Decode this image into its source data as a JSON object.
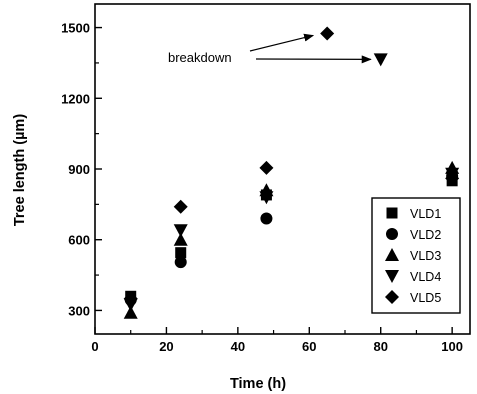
{
  "chart_data": {
    "type": "scatter",
    "title": "",
    "xlabel": "Time (h)",
    "ylabel": "Tree length (µm)",
    "xlim": [
      0,
      105
    ],
    "ylim": [
      200,
      1600
    ],
    "x_ticks": [
      0,
      20,
      40,
      60,
      80,
      100
    ],
    "y_ticks": [
      300,
      600,
      900,
      1200,
      1500
    ],
    "grid": false,
    "legend_position": "bottom-right",
    "series": [
      {
        "name": "VLD1",
        "marker": "square",
        "x": [
          10,
          24,
          48,
          100
        ],
        "y": [
          360,
          545,
          790,
          850
        ]
      },
      {
        "name": "VLD2",
        "marker": "circle",
        "x": [
          10,
          24,
          48,
          100
        ],
        "y": [
          345,
          505,
          690,
          870
        ]
      },
      {
        "name": "VLD3",
        "marker": "triangle-up",
        "x": [
          10,
          24,
          48,
          100
        ],
        "y": [
          290,
          600,
          810,
          905
        ]
      },
      {
        "name": "VLD4",
        "marker": "triangle-down",
        "x": [
          10,
          24,
          48,
          80,
          100
        ],
        "y": [
          325,
          640,
          780,
          1365,
          880
        ]
      },
      {
        "name": "VLD5",
        "marker": "diamond",
        "x": [
          10,
          24,
          48,
          65,
          100
        ],
        "y": [
          350,
          740,
          905,
          1475,
          860
        ]
      }
    ],
    "annotations": [
      {
        "text": "breakdown",
        "arrow_targets": [
          {
            "x": 65,
            "y": 1475
          },
          {
            "x": 80,
            "y": 1365
          }
        ]
      }
    ]
  }
}
